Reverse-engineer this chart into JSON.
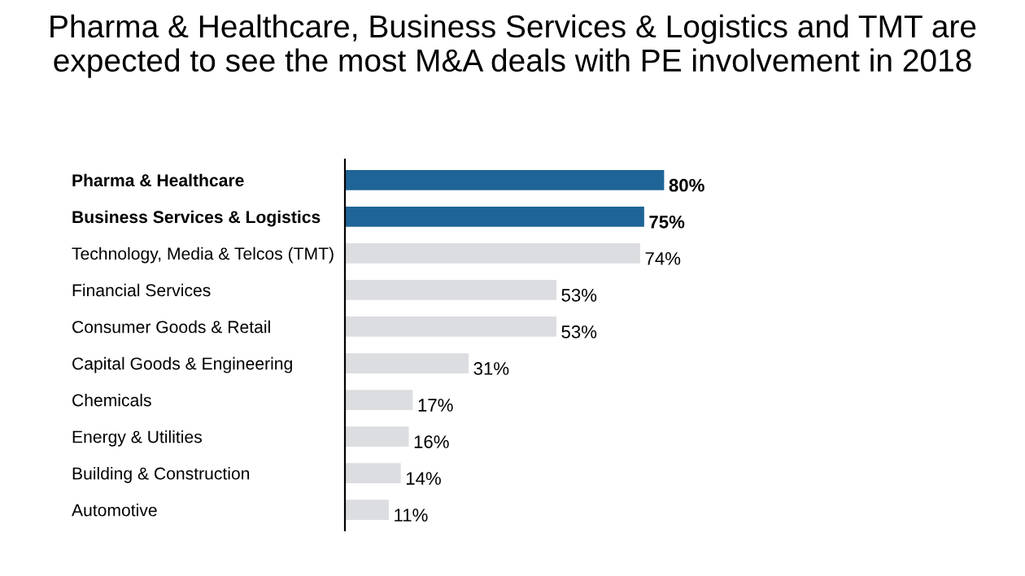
{
  "chart_data": {
    "type": "bar",
    "orientation": "horizontal",
    "title": "Pharma & Healthcare, Business Services & Logistics and TMT are expected to see the most M&A deals with PE involvement in 2018",
    "categories": [
      "Pharma & Healthcare",
      "Business Services & Logistics",
      "Technology, Media & Telcos (TMT)",
      "Financial Services",
      "Consumer Goods & Retail",
      "Capital Goods & Engineering",
      "Chemicals",
      "Energy & Utilities",
      "Building & Construction",
      "Automotive"
    ],
    "values": [
      80,
      75,
      74,
      53,
      53,
      31,
      17,
      16,
      14,
      11
    ],
    "colors": [
      "#1f6496",
      "#1f6496",
      "#dcdde1",
      "#dcdde1",
      "#dcdde1",
      "#dcdde1",
      "#dcdde1",
      "#dcdde1",
      "#dcdde1",
      "#dcdde1"
    ],
    "value_labels": [
      "80%",
      "75%",
      "74%",
      "53%",
      "53%",
      "31%",
      "17%",
      "16%",
      "14%",
      "11%"
    ],
    "grid": false,
    "legend": false
  }
}
